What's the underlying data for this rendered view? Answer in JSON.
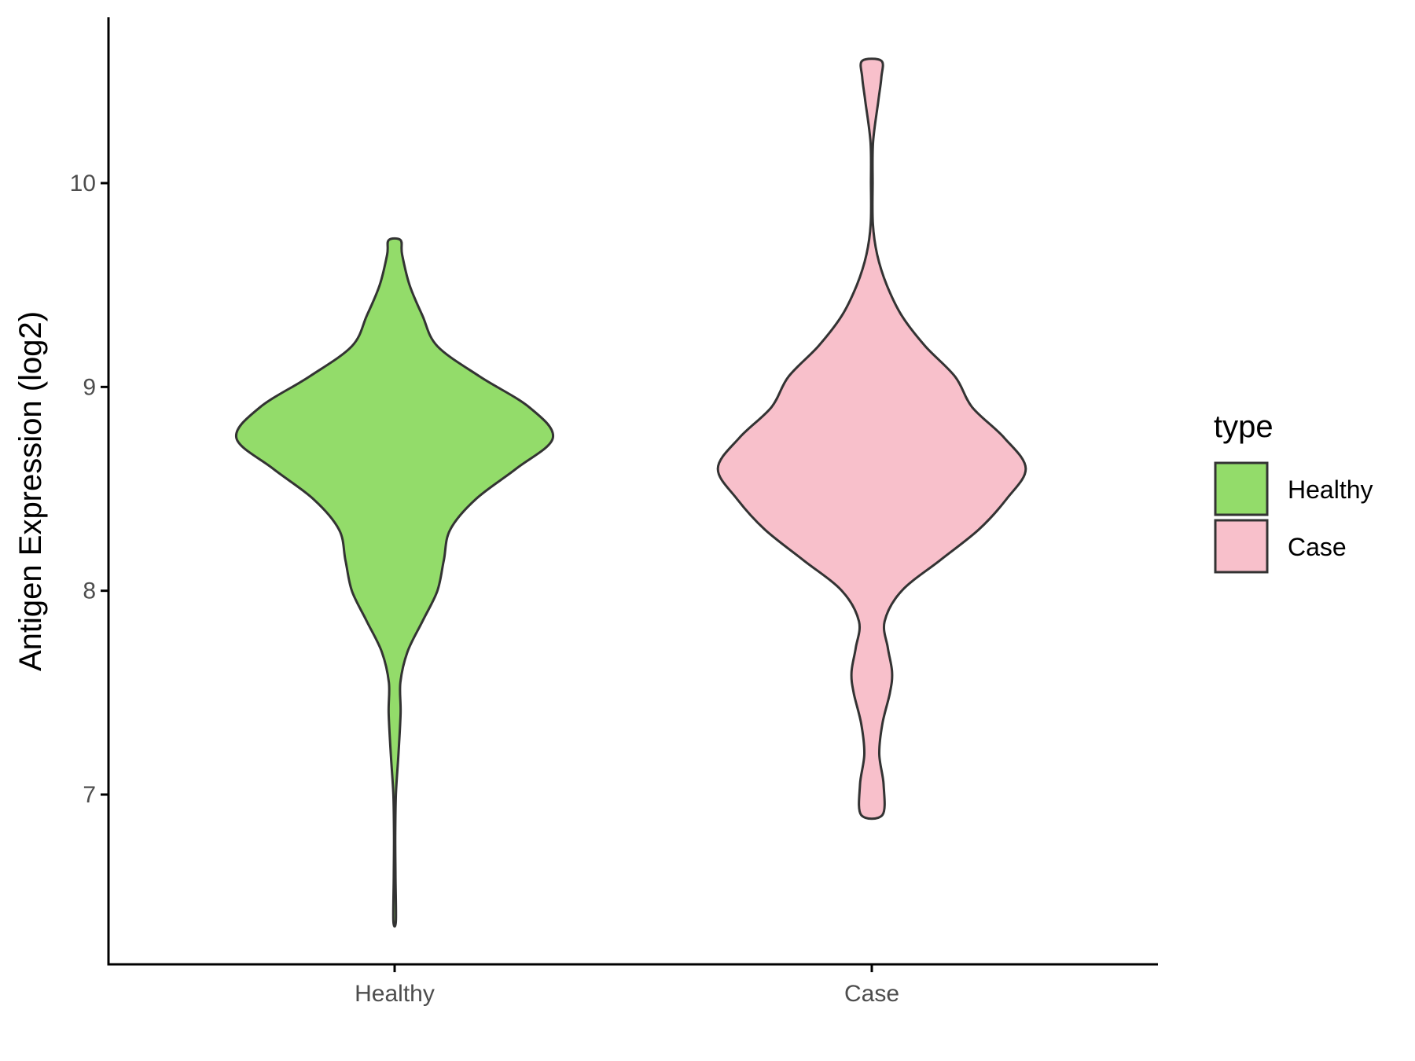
{
  "chart_data": {
    "type": "violin",
    "title": "",
    "xlabel": "",
    "ylabel": "Antigen Expression (log2)",
    "ylim": [
      6.2,
      10.85
    ],
    "yticks": [
      7,
      8,
      9,
      10
    ],
    "categories": [
      "Healthy",
      "Case"
    ],
    "grid": false,
    "legend": {
      "title": "type",
      "position": "right",
      "entries": [
        "Healthy",
        "Case"
      ]
    },
    "series": [
      {
        "name": "Healthy",
        "color": "#93dc6a",
        "ymin": 6.38,
        "ymax": 9.72,
        "density_profile": [
          [
            6.38,
            0.006
          ],
          [
            6.6,
            0.004
          ],
          [
            6.8,
            0.003
          ],
          [
            7.0,
            0.006
          ],
          [
            7.2,
            0.018
          ],
          [
            7.4,
            0.028
          ],
          [
            7.55,
            0.027
          ],
          [
            7.7,
            0.06
          ],
          [
            7.85,
            0.13
          ],
          [
            8.0,
            0.2
          ],
          [
            8.15,
            0.23
          ],
          [
            8.3,
            0.26
          ],
          [
            8.45,
            0.38
          ],
          [
            8.6,
            0.57
          ],
          [
            8.75,
            0.74
          ],
          [
            8.9,
            0.63
          ],
          [
            9.05,
            0.4
          ],
          [
            9.2,
            0.2
          ],
          [
            9.35,
            0.13
          ],
          [
            9.5,
            0.07
          ],
          [
            9.65,
            0.035
          ],
          [
            9.72,
            0.028
          ]
        ]
      },
      {
        "name": "Case",
        "color": "#f8c0cb",
        "ymin": 6.9,
        "ymax": 10.6,
        "density_profile": [
          [
            6.9,
            0.05
          ],
          [
            7.05,
            0.055
          ],
          [
            7.2,
            0.035
          ],
          [
            7.35,
            0.05
          ],
          [
            7.5,
            0.085
          ],
          [
            7.6,
            0.095
          ],
          [
            7.72,
            0.075
          ],
          [
            7.85,
            0.06
          ],
          [
            8.0,
            0.14
          ],
          [
            8.15,
            0.32
          ],
          [
            8.3,
            0.5
          ],
          [
            8.45,
            0.63
          ],
          [
            8.6,
            0.72
          ],
          [
            8.75,
            0.62
          ],
          [
            8.9,
            0.47
          ],
          [
            9.05,
            0.39
          ],
          [
            9.2,
            0.25
          ],
          [
            9.35,
            0.14
          ],
          [
            9.5,
            0.07
          ],
          [
            9.65,
            0.025
          ],
          [
            9.8,
            0.005
          ],
          [
            10.0,
            0.004
          ],
          [
            10.2,
            0.006
          ],
          [
            10.4,
            0.03
          ],
          [
            10.52,
            0.045
          ],
          [
            10.6,
            0.045
          ]
        ]
      }
    ]
  },
  "style": {
    "outline_color": "#333333",
    "axis_color": "#000000"
  }
}
